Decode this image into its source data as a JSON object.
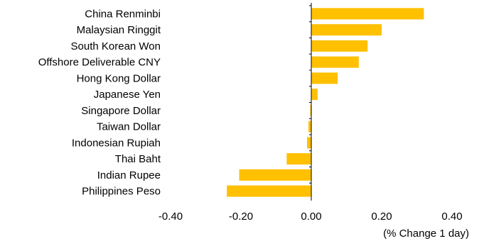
{
  "chart_data": {
    "type": "bar",
    "orientation": "horizontal",
    "categories": [
      "China Renminbi",
      "Malaysian Ringgit",
      "South Korean Won",
      "Offshore Deliverable CNY",
      "Hong Kong Dollar",
      "Japanese Yen",
      "Singapore Dollar",
      "Taiwan Dollar",
      "Indonesian Rupiah",
      "Thai Baht",
      "Indian Rupee",
      "Philippines Peso"
    ],
    "values": [
      0.32,
      0.2,
      0.16,
      0.135,
      0.075,
      0.018,
      -0.003,
      -0.008,
      -0.012,
      -0.07,
      -0.205,
      -0.24
    ],
    "xlim": [
      -0.4,
      0.4
    ],
    "xticks": [
      "-0.40",
      "-0.20",
      "0.00",
      "0.20",
      "0.40"
    ],
    "xtick_values": [
      -0.4,
      -0.2,
      0,
      0.2,
      0.4
    ],
    "xlabel": "(% Change 1 day)",
    "bar_color": "#FFC000",
    "grid": false,
    "legend": "none"
  }
}
